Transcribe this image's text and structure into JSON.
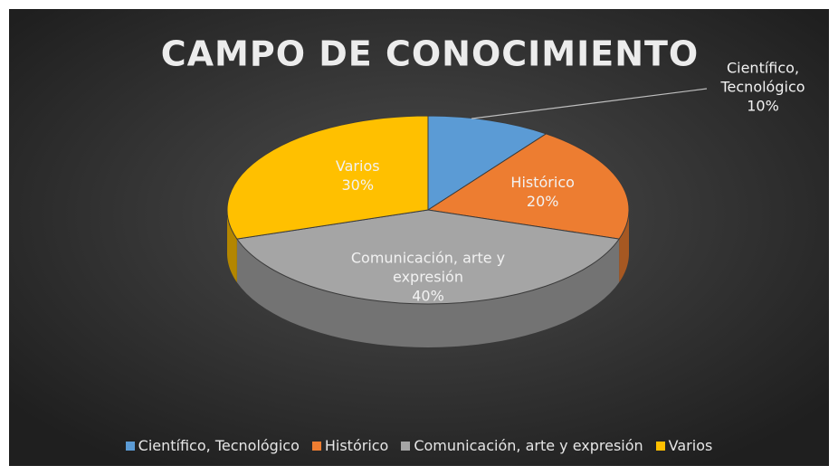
{
  "chart_data": {
    "type": "pie",
    "title": "CAMPO DE CONOCIMIENTO",
    "categories": [
      "Científico, Tecnológico",
      "Histórico",
      "Comunicación, arte y expresión",
      "Varios"
    ],
    "values": [
      10,
      20,
      40,
      30
    ],
    "value_labels": [
      "10%",
      "20%",
      "40%",
      "30%"
    ],
    "colors": [
      "#5b9bd5",
      "#ed7d31",
      "#a5a5a5",
      "#ffc000"
    ],
    "legend": "bottom"
  }
}
